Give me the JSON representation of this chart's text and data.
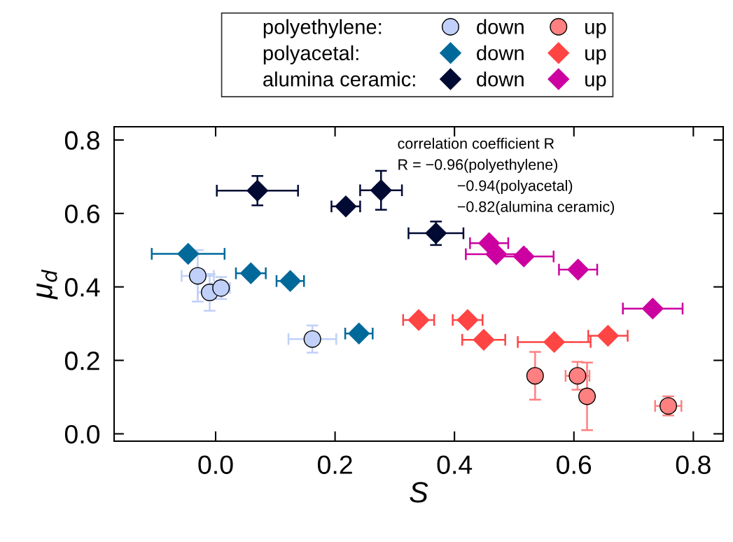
{
  "chart_data": {
    "type": "scatter",
    "xlabel": "S",
    "ylabel": "μ$_{d}$",
    "xlim": [
      -0.17,
      0.85
    ],
    "ylim": [
      -0.02,
      0.836
    ],
    "xticks": [
      {
        "value": 0.0,
        "label": "0.0"
      },
      0.2,
      0.4,
      0.6,
      0.8
    ],
    "yticks": [
      {
        "value": 0.0,
        "label": "0.0"
      },
      0.2,
      0.4,
      0.6,
      0.8
    ],
    "grid": false,
    "legend": "top",
    "annotations": [
      "polyethylene:",
      "polyacetal:",
      "alumina ceramic:",
      "correlation coefficient R",
      "R = −0.96(polyethylene)",
      "−0.94(polyacetal)",
      "−0.82(alumina ceramic)"
    ],
    "series": [
      {
        "name": "down",
        "color": "#c0d0f8",
        "marker": "circle",
        "x": [
          -0.03,
          -0.01,
          0.009,
          0.162
        ],
        "values": [
          0.43,
          0.385,
          0.397,
          0.258
        ],
        "errors": [
          0.07,
          0.05,
          0.03,
          0.037
        ],
        "xerrors": [
          0.027,
          0.02,
          0.015,
          0.04
        ]
      },
      {
        "name": "up",
        "color": "#ff8080",
        "marker": "circle",
        "x": [
          0.535,
          0.606,
          0.622,
          0.758
        ],
        "values": [
          0.158,
          0.158,
          0.102,
          0.076
        ],
        "errors": [
          0.065,
          0.038,
          0.092,
          0.026
        ],
        "xerrors": [
          null,
          0.02,
          null,
          0.022
        ]
      },
      {
        "name": "down",
        "color": "#00699a",
        "marker": "diamond",
        "x": [
          -0.046,
          0.059,
          0.125,
          0.24
        ],
        "values": [
          0.49,
          0.437,
          0.416,
          0.273
        ],
        "errors": [
          null,
          0.01,
          0.01,
          null
        ],
        "xerrors": [
          0.061,
          0.025,
          0.023,
          0.023
        ]
      },
      {
        "name": "up",
        "color": "#ff4444",
        "marker": "diamond",
        "x": [
          0.34,
          0.422,
          0.449,
          0.567,
          0.657
        ],
        "values": [
          0.31,
          0.31,
          0.256,
          0.25,
          0.267
        ],
        "errors": [
          null,
          null,
          null,
          null,
          null
        ],
        "xerrors": [
          0.026,
          0.025,
          0.036,
          0.061,
          0.033
        ]
      },
      {
        "name": "down",
        "color": "#000a33",
        "marker": "diamond",
        "x": [
          0.07,
          0.218,
          0.277,
          0.369
        ],
        "values": [
          0.662,
          0.619,
          0.663,
          0.546
        ],
        "errors": [
          0.04,
          null,
          0.053,
          0.032
        ],
        "xerrors": [
          0.068,
          0.024,
          0.035,
          0.046
        ]
      },
      {
        "name": "up",
        "color": "#cc00a0",
        "marker": "diamond",
        "x": [
          0.458,
          0.47,
          0.516,
          0.607,
          0.732
        ],
        "values": [
          0.519,
          0.489,
          0.483,
          0.447,
          0.341
        ],
        "errors": [
          null,
          null,
          null,
          null,
          null
        ],
        "xerrors": [
          0.032,
          0.051,
          0.05,
          0.032,
          0.05
        ]
      }
    ]
  }
}
